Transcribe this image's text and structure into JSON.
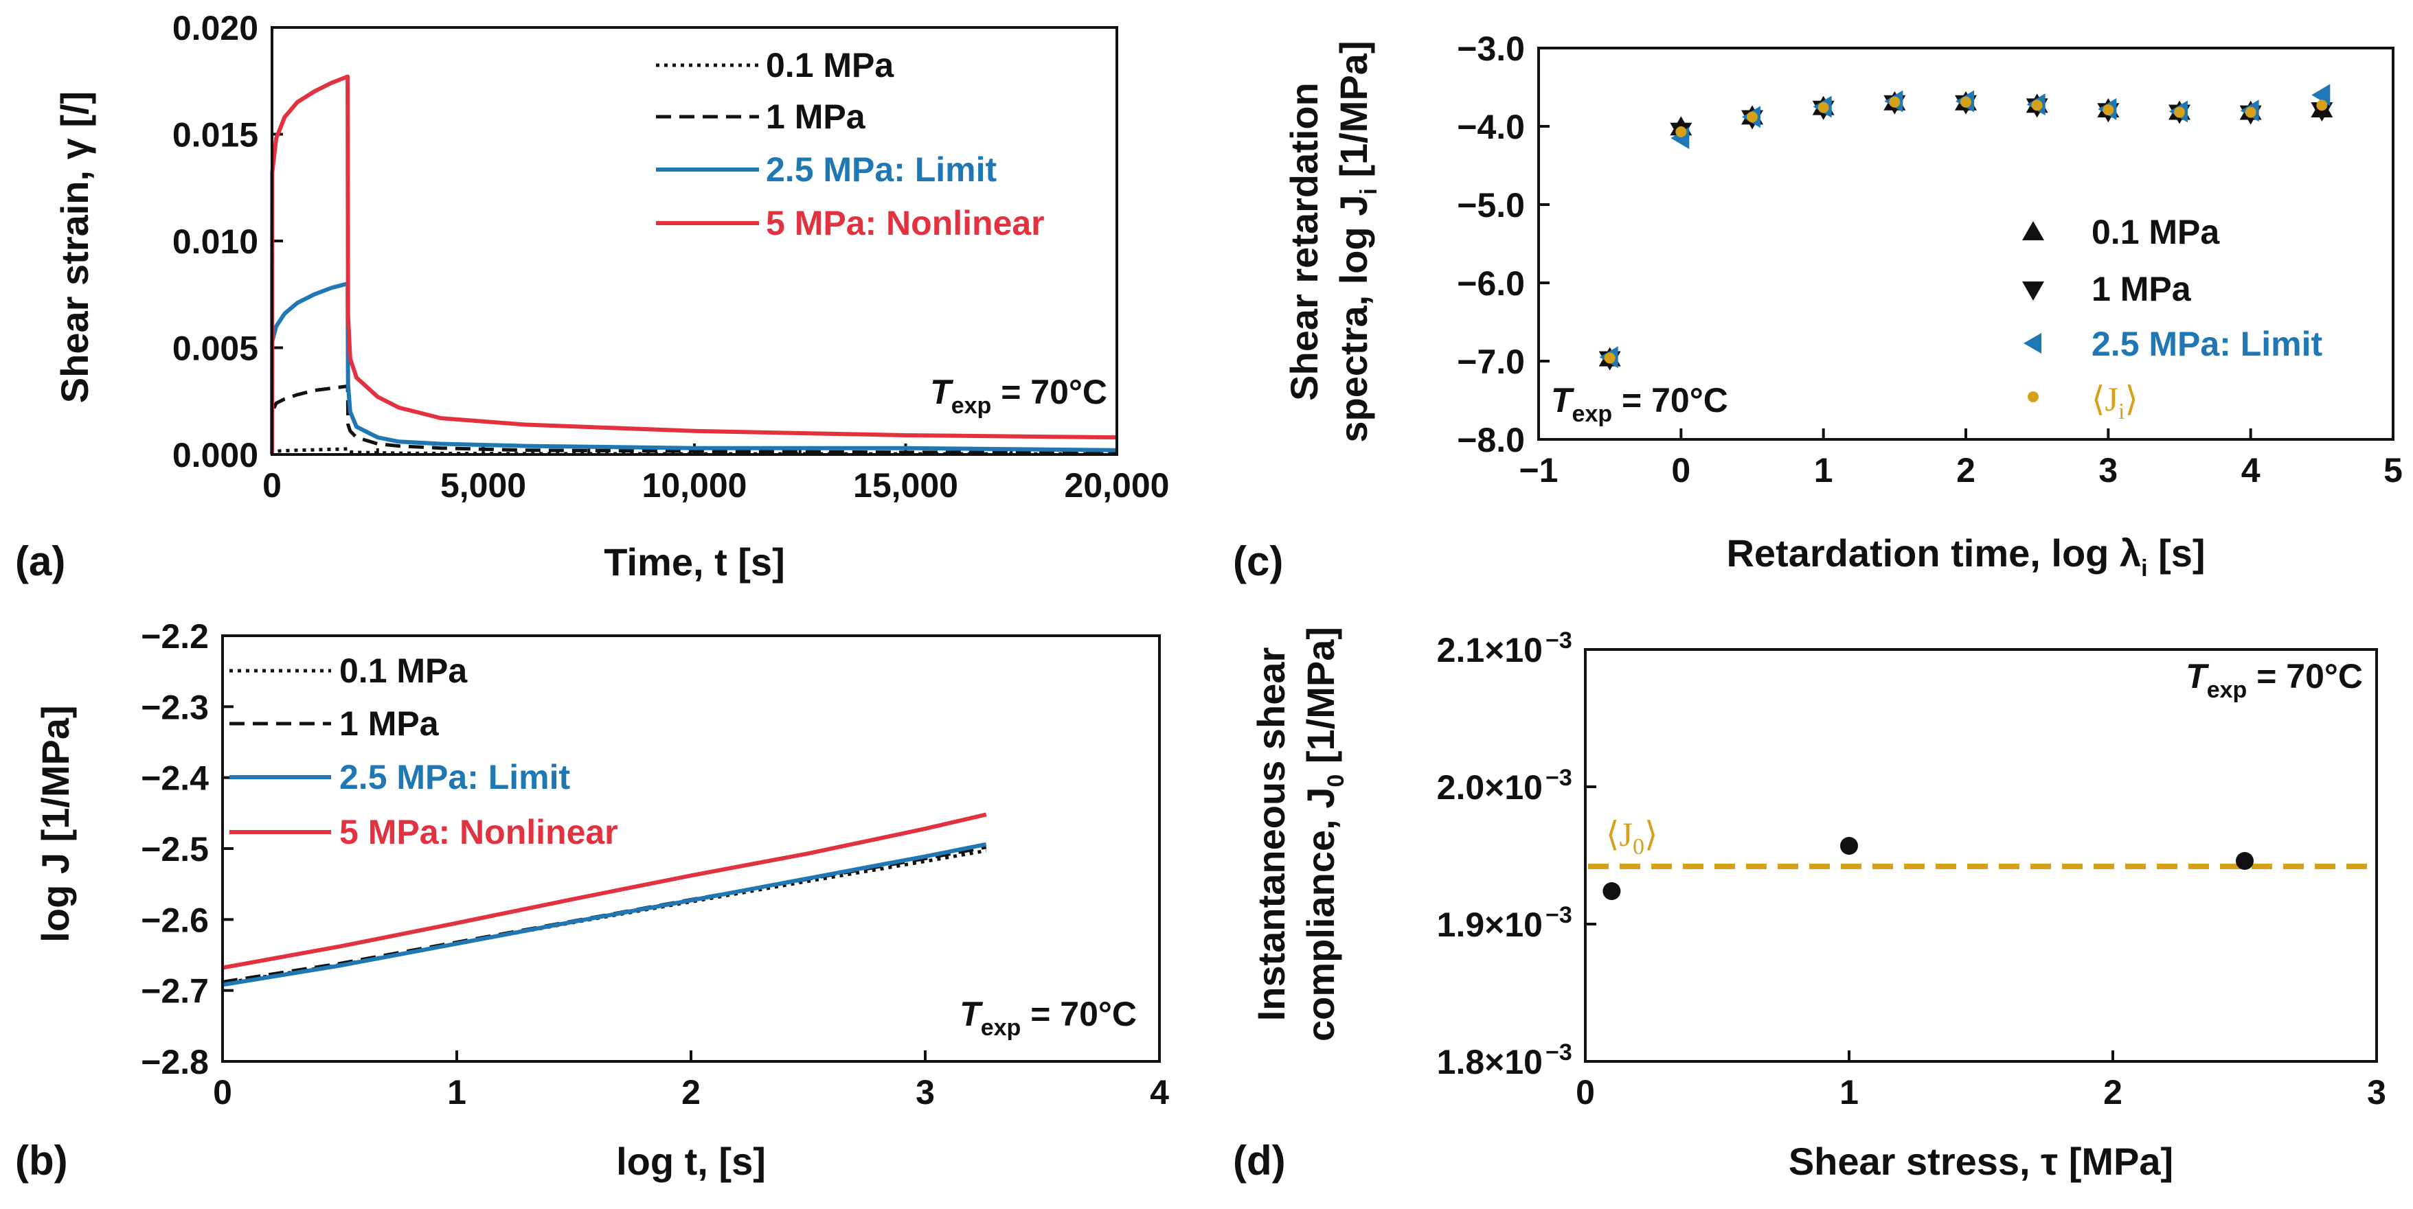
{
  "colors": {
    "black": "#111111",
    "blue": "#1f77b4",
    "red": "#e2313f",
    "gold": "#d6a01a"
  },
  "chart_data": [
    {
      "id": "a",
      "type": "line",
      "panel_label": "(a)",
      "xlabel": "Time, t [s]",
      "ylabel": "Shear strain, γ [/]",
      "xlim": [
        0,
        20000
      ],
      "ylim": [
        0,
        0.02
      ],
      "xticks": [
        0,
        5000,
        10000,
        15000,
        20000
      ],
      "xtick_labels": [
        "0",
        "5,000",
        "10,000",
        "15,000",
        "20,000"
      ],
      "yticks": [
        0,
        0.005,
        0.01,
        0.015,
        0.02
      ],
      "ytick_labels": [
        "0.000",
        "0.005",
        "0.010",
        "0.015",
        "0.020"
      ],
      "annotation": {
        "main": "T",
        "sub": "exp",
        "rest": " = 70°C"
      },
      "series": [
        {
          "name": "0.1 MPa",
          "color": "#111111",
          "dash": "dot",
          "x": [
            0,
            5,
            200,
            600,
            1000,
            1400,
            1790,
            1800,
            1850,
            2000,
            2500,
            3000,
            4000,
            6000,
            10000,
            15000,
            20000
          ],
          "y": [
            0,
            0.00012,
            0.00017,
            0.0002,
            0.00022,
            0.00024,
            0.00026,
            0.00014,
            0.00012,
            0.0001,
            8e-05,
            6e-05,
            5e-05,
            4e-05,
            3e-05,
            3e-05,
            3e-05
          ]
        },
        {
          "name": "1 MPa",
          "color": "#111111",
          "dash": "dash",
          "x": [
            0,
            5,
            100,
            300,
            600,
            1000,
            1400,
            1790,
            1800,
            1850,
            2000,
            2500,
            3000,
            4000,
            6000,
            10000,
            15000,
            20000
          ],
          "y": [
            0,
            0.002,
            0.0024,
            0.0026,
            0.0028,
            0.003,
            0.0031,
            0.0032,
            0.0014,
            0.0011,
            0.0008,
            0.0005,
            0.0004,
            0.0003,
            0.0002,
            0.00015,
            0.0001,
            0.0001
          ]
        },
        {
          "name": "2.5 MPa: Limit",
          "color": "#1f77b4",
          "dash": "solid",
          "x": [
            0,
            5,
            100,
            300,
            600,
            1000,
            1400,
            1790,
            1800,
            1850,
            2000,
            2500,
            3000,
            4000,
            6000,
            10000,
            15000,
            20000
          ],
          "y": [
            0,
            0.0053,
            0.006,
            0.0066,
            0.0071,
            0.0075,
            0.0078,
            0.008,
            0.0033,
            0.002,
            0.0013,
            0.0008,
            0.0006,
            0.0005,
            0.0004,
            0.0003,
            0.0003,
            0.0002
          ]
        },
        {
          "name": "5 MPa: Nonlinear",
          "color": "#e2313f",
          "dash": "solid",
          "x": [
            0,
            5,
            100,
            300,
            600,
            1000,
            1400,
            1790,
            1800,
            1850,
            2000,
            2500,
            3000,
            4000,
            6000,
            10000,
            15000,
            20000
          ],
          "y": [
            0,
            0.0132,
            0.0148,
            0.0158,
            0.0165,
            0.017,
            0.0174,
            0.0177,
            0.0065,
            0.0045,
            0.0036,
            0.0027,
            0.0022,
            0.0017,
            0.0014,
            0.0011,
            0.0009,
            0.0008
          ]
        }
      ]
    },
    {
      "id": "b",
      "type": "line",
      "panel_label": "(b)",
      "xlabel": "log t, [s]",
      "ylabel": "log J [1/MPa]",
      "xlim": [
        0,
        4
      ],
      "ylim": [
        -2.8,
        -2.2
      ],
      "xticks": [
        0,
        1,
        2,
        3,
        4
      ],
      "xtick_labels": [
        "0",
        "1",
        "2",
        "3",
        "4"
      ],
      "yticks": [
        -2.8,
        -2.7,
        -2.6,
        -2.5,
        -2.4,
        -2.3,
        -2.2
      ],
      "ytick_labels": [
        "−2.8",
        "−2.7",
        "−2.6",
        "−2.5",
        "−2.4",
        "−2.3",
        "−2.2"
      ],
      "annotation": {
        "main": "T",
        "sub": "exp",
        "rest": " = 70°C"
      },
      "series": [
        {
          "name": "0.1 MPa",
          "color": "#111111",
          "dash": "dot",
          "x": [
            0,
            0.5,
            1,
            1.5,
            2,
            2.5,
            3,
            3.26
          ],
          "y": [
            -2.69,
            -2.664,
            -2.634,
            -2.604,
            -2.575,
            -2.546,
            -2.518,
            -2.503
          ]
        },
        {
          "name": "1 MPa",
          "color": "#111111",
          "dash": "dash",
          "x": [
            0,
            0.5,
            1,
            1.5,
            2,
            2.5,
            3,
            3.26
          ],
          "y": [
            -2.688,
            -2.662,
            -2.632,
            -2.602,
            -2.572,
            -2.543,
            -2.514,
            -2.498
          ]
        },
        {
          "name": "2.5 MPa: Limit",
          "color": "#1f77b4",
          "dash": "solid",
          "x": [
            0,
            0.5,
            1,
            1.5,
            2,
            2.5,
            3,
            3.26
          ],
          "y": [
            -2.692,
            -2.665,
            -2.634,
            -2.603,
            -2.573,
            -2.542,
            -2.511,
            -2.494
          ]
        },
        {
          "name": "5 MPa: Nonlinear",
          "color": "#e2313f",
          "dash": "solid",
          "x": [
            0,
            0.5,
            1,
            1.5,
            2,
            2.5,
            3,
            3.26
          ],
          "y": [
            -2.668,
            -2.638,
            -2.605,
            -2.571,
            -2.538,
            -2.507,
            -2.472,
            -2.452
          ]
        }
      ]
    },
    {
      "id": "c",
      "type": "scatter",
      "panel_label": "(c)",
      "xlabel": "Retardation time,  log λ",
      "xlabel_sub": "i",
      "xlabel_rest": " [s]",
      "ylabel_line1": "Shear retardation",
      "ylabel_line2": "spectra, log J",
      "ylabel_sub": "i",
      "ylabel_rest": " [1/MPa]",
      "xlim": [
        -1,
        5
      ],
      "ylim": [
        -8,
        -3
      ],
      "xticks": [
        -1,
        0,
        1,
        2,
        3,
        4,
        5
      ],
      "xtick_labels": [
        "−1",
        "0",
        "1",
        "2",
        "3",
        "4",
        "5"
      ],
      "yticks": [
        -8,
        -7,
        -6,
        -5,
        -4,
        -3
      ],
      "ytick_labels": [
        "−8.0",
        "−7.0",
        "−6.0",
        "−5.0",
        "−4.0",
        "−3.0"
      ],
      "annotation": {
        "main": "T",
        "sub": "exp",
        "rest": " = 70°C"
      },
      "series": [
        {
          "name": "0.1 MPa",
          "color": "#111111",
          "marker": "triangle-up",
          "x": [
            -0.5,
            0,
            0.5,
            1,
            1.5,
            2,
            2.5,
            3,
            3.5,
            4,
            4.5
          ],
          "y": [
            -6.97,
            -4.02,
            -3.88,
            -3.76,
            -3.7,
            -3.7,
            -3.73,
            -3.79,
            -3.82,
            -3.82,
            -3.79
          ]
        },
        {
          "name": "1 MPa",
          "color": "#111111",
          "marker": "triangle-down",
          "x": [
            -0.5,
            0,
            0.5,
            1,
            1.5,
            2,
            2.5,
            3,
            3.5,
            4,
            4.5
          ],
          "y": [
            -6.97,
            -4.05,
            -3.89,
            -3.77,
            -3.7,
            -3.7,
            -3.74,
            -3.8,
            -3.82,
            -3.83,
            -3.79
          ]
        },
        {
          "name": "2.5 MPa: Limit",
          "color": "#1f77b4",
          "marker": "triangle-left",
          "x": [
            -0.5,
            0,
            0.5,
            1,
            1.5,
            2,
            2.5,
            3,
            3.5,
            4,
            4.5
          ],
          "y": [
            -6.95,
            -4.15,
            -3.88,
            -3.75,
            -3.68,
            -3.68,
            -3.72,
            -3.78,
            -3.81,
            -3.8,
            -3.6
          ]
        },
        {
          "name": "⟨J",
          "name_sub": "i",
          "name_rest": "⟩",
          "color": "#d6a01a",
          "marker": "circle-small",
          "x": [
            -0.5,
            0,
            0.5,
            1,
            1.5,
            2,
            2.5,
            3,
            3.5,
            4,
            4.5
          ],
          "y": [
            -6.96,
            -4.07,
            -3.88,
            -3.76,
            -3.69,
            -3.69,
            -3.73,
            -3.79,
            -3.82,
            -3.82,
            -3.73
          ]
        }
      ]
    },
    {
      "id": "d",
      "type": "scatter",
      "panel_label": "(d)",
      "xlabel": "Shear stress, τ [MPa]",
      "ylabel_line1": "Instantaneous shear",
      "ylabel_line2": "compliance, J",
      "ylabel_sub": "0",
      "ylabel_rest": " [1/MPa]",
      "xlim": [
        0,
        3
      ],
      "ylim": [
        0.0018,
        0.0021
      ],
      "xticks": [
        0,
        1,
        2,
        3
      ],
      "xtick_labels": [
        "0",
        "1",
        "2",
        "3"
      ],
      "yticks": [
        0.0018,
        0.0019,
        0.002,
        0.0021
      ],
      "ytick_labels": [
        "1.8×10",
        "1.9×10",
        "2.0×10",
        "2.1×10"
      ],
      "ytick_exponent": "−3",
      "annotation": {
        "main": "T",
        "sub": "exp",
        "rest": " = 70°C"
      },
      "mean_line": {
        "value": 0.001942,
        "label": "⟨J",
        "label_sub": "0",
        "label_rest": "⟩",
        "color": "#d6a01a"
      },
      "series": [
        {
          "name": "J0",
          "color": "#111111",
          "marker": "circle",
          "x": [
            0.1,
            1,
            2.5
          ],
          "y": [
            0.001924,
            0.001957,
            0.001946
          ]
        }
      ]
    }
  ]
}
